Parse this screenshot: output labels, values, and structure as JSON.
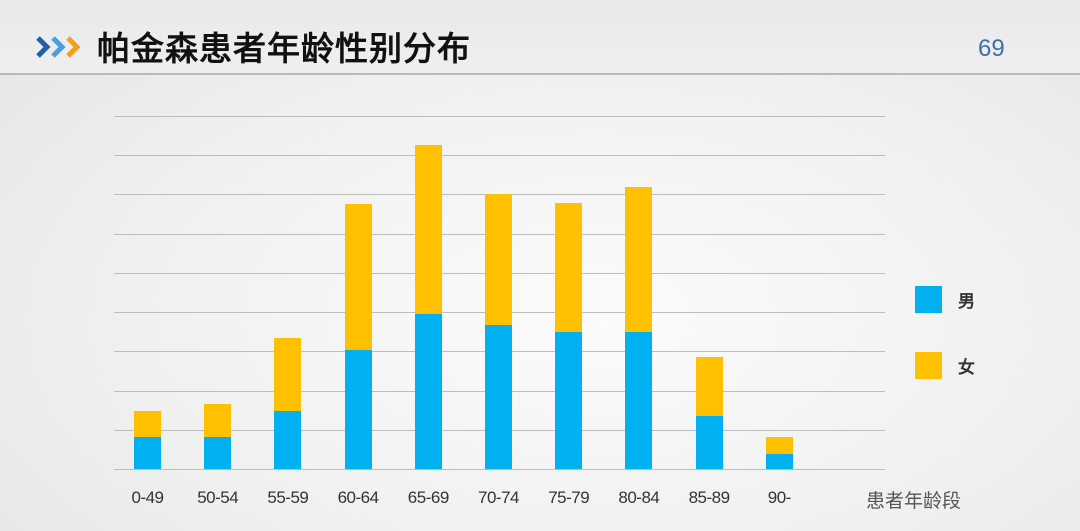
{
  "header": {
    "title": "帕金森患者年龄性别分布",
    "page_number": "69",
    "chevron_colors": [
      "#1f5fa8",
      "#4a9fe0",
      "#f5a01a"
    ]
  },
  "legend": [
    {
      "label": "男",
      "color": "#00b0f0"
    },
    {
      "label": "女",
      "color": "#ffc000"
    }
  ],
  "chart_data": {
    "type": "bar",
    "stacked": true,
    "title": "帕金森患者年龄性别分布",
    "xlabel": "患者年龄段",
    "ylabel": "",
    "categories": [
      "0-49",
      "50-54",
      "55-59",
      "60-64",
      "65-69",
      "70-74",
      "75-79",
      "80-84",
      "85-89",
      "90-"
    ],
    "series": [
      {
        "name": "男",
        "color": "#00b0f0",
        "values": [
          0.82,
          0.82,
          1.48,
          3.04,
          3.95,
          3.67,
          3.49,
          3.49,
          1.35,
          0.38
        ]
      },
      {
        "name": "女",
        "color": "#ffc000",
        "values": [
          0.66,
          0.84,
          1.86,
          3.72,
          4.32,
          3.35,
          3.3,
          3.7,
          1.51,
          0.44
        ]
      }
    ],
    "ylim": [
      0,
      9
    ],
    "y_unit_note": "no y-axis tick labels shown; values in gridline units",
    "grid": true,
    "gridlines": 9,
    "legend_position": "right"
  }
}
